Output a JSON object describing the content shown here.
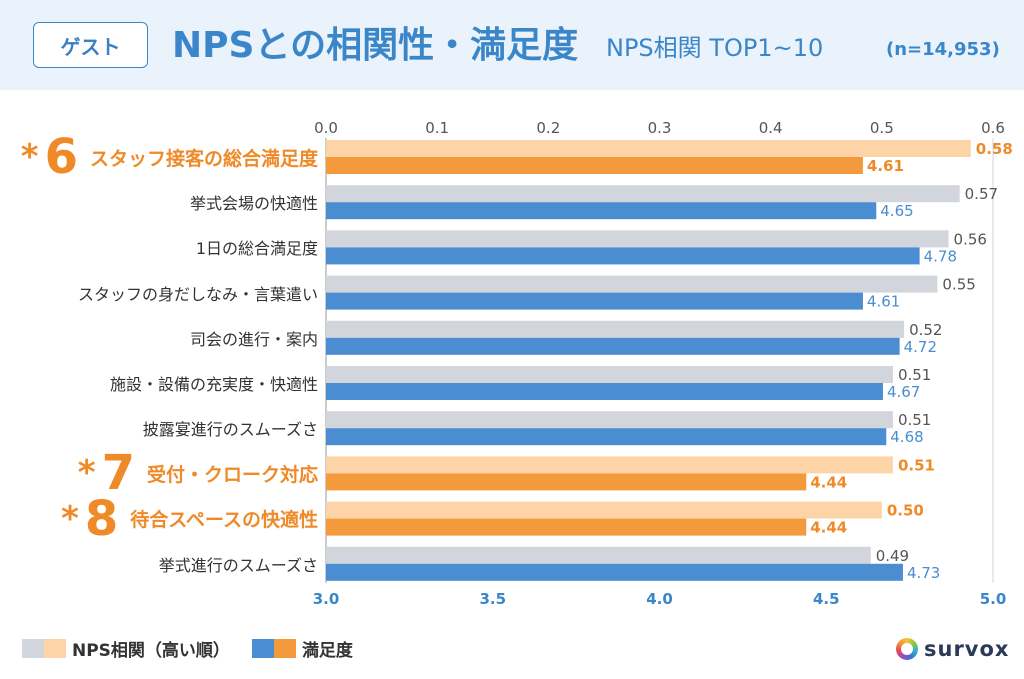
{
  "header": {
    "badge": "ゲスト"
  },
  "colors": {
    "title": "#3a86c9",
    "header_background": "#eaf3fb",
    "nps": "#d2d5dc",
    "nps_highlight": "#fdd4a8",
    "satisfaction": "#4a8ed1",
    "satisfaction_highlight": "#f39a3c",
    "highlight_text": "#ef8a28",
    "category_text": "#333333",
    "nps_value_text": "#555555",
    "top_tick_text": "#555555",
    "bottom_tick_text": "#3a86c9"
  },
  "chart_data": {
    "type": "bar",
    "orientation": "horizontal",
    "title": "NPSとの相関性・満足度",
    "subtitle": "NPS相関 TOP1~10",
    "note": "(n=14,953)",
    "categories": [
      "スタッフ接客の総合満足度",
      "挙式会場の快適性",
      "1日の総合満足度",
      "スタッフの身だしなみ・言葉遣い",
      "司会の進行・案内",
      "施設・設備の充実度・快適性",
      "披露宴進行のスムーズさ",
      "受付・クローク対応",
      "待合スペースの快適性",
      "挙式進行のスムーズさ"
    ],
    "highlights": [
      {
        "index": 0,
        "mark": "*",
        "rank": "6"
      },
      {
        "index": 7,
        "mark": "*",
        "rank": "7"
      },
      {
        "index": 8,
        "mark": "*",
        "rank": "8"
      }
    ],
    "series": [
      {
        "name": "NPS相関（高い順）",
        "axis": "top",
        "values": [
          0.58,
          0.57,
          0.56,
          0.55,
          0.52,
          0.51,
          0.51,
          0.51,
          0.5,
          0.49
        ]
      },
      {
        "name": "満足度",
        "axis": "bottom",
        "values": [
          4.61,
          4.65,
          4.78,
          4.61,
          4.72,
          4.67,
          4.68,
          4.44,
          4.44,
          4.73
        ]
      }
    ],
    "top_axis": {
      "range": [
        0,
        0.6
      ],
      "ticks": [
        "0.0",
        "0.1",
        "0.2",
        "0.3",
        "0.4",
        "0.5",
        "0.6"
      ]
    },
    "bottom_axis": {
      "range": [
        3.0,
        5.0
      ],
      "ticks": [
        "3.0",
        "3.5",
        "4.0",
        "4.5",
        "5.0"
      ]
    },
    "value_labels": true,
    "grid": false,
    "legend_position": "bottom-left"
  },
  "logo": {
    "text": "survox",
    "icon": "survox-ring-icon"
  }
}
